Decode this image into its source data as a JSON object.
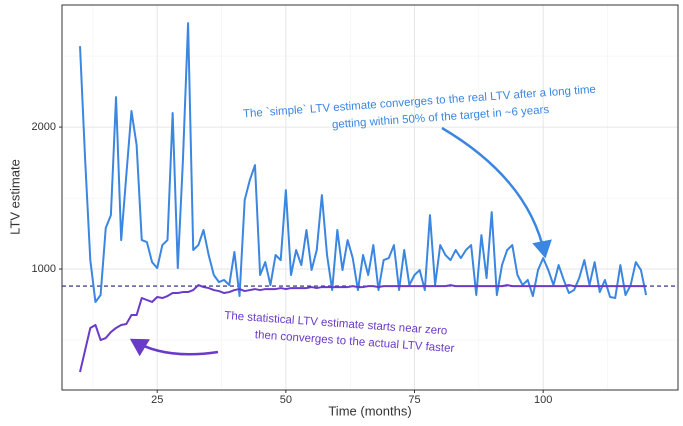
{
  "chart_data": {
    "type": "line",
    "x_label": "Time (months)",
    "y_label": "LTV estimate",
    "x": [
      10,
      11,
      12,
      13,
      14,
      15,
      16,
      17,
      18,
      19,
      20,
      21,
      22,
      23,
      24,
      25,
      26,
      27,
      28,
      29,
      30,
      31,
      32,
      33,
      34,
      35,
      36,
      37,
      38,
      39,
      40,
      41,
      42,
      43,
      44,
      45,
      46,
      47,
      48,
      49,
      50,
      51,
      52,
      53,
      54,
      55,
      56,
      57,
      58,
      59,
      60,
      61,
      62,
      63,
      64,
      65,
      66,
      67,
      68,
      69,
      70,
      71,
      72,
      73,
      74,
      75,
      76,
      77,
      78,
      79,
      80,
      81,
      82,
      83,
      84,
      85,
      86,
      87,
      88,
      89,
      90,
      91,
      92,
      93,
      94,
      95,
      96,
      97,
      98,
      99,
      100,
      101,
      102,
      103,
      104,
      105,
      106,
      107,
      108,
      109,
      110,
      111,
      112,
      113,
      114,
      115,
      116,
      117,
      118,
      119,
      120
    ],
    "series": [
      {
        "name": "simple",
        "color": "#3b86e0",
        "values": [
          2570,
          1768,
          1063,
          768,
          817,
          1289,
          1380,
          2211,
          1204,
          1662,
          2113,
          1873,
          1204,
          1190,
          1049,
          1007,
          1169,
          1204,
          2099,
          1007,
          1768,
          2732,
          1134,
          1169,
          1275,
          1099,
          958,
          908,
          923,
          887,
          1120,
          810,
          1486,
          1627,
          1732,
          958,
          1049,
          887,
          1099,
          1063,
          1556,
          958,
          1134,
          1028,
          1275,
          993,
          1134,
          1521,
          1099,
          852,
          1275,
          993,
          1204,
          1077,
          852,
          1099,
          958,
          1169,
          852,
          1063,
          1077,
          1169,
          852,
          1134,
          887,
          958,
          993,
          852,
          1380,
          887,
          1169,
          1099,
          1063,
          1134,
          1077,
          1134,
          1169,
          817,
          1239,
          937,
          1401,
          817,
          1028,
          1134,
          1169,
          958,
          887,
          923,
          810,
          993,
          1077,
          993,
          887,
          1028,
          923,
          831,
          852,
          937,
          1063,
          887,
          1049,
          838,
          923,
          803,
          796,
          1028,
          817,
          887,
          1049,
          993,
          817
        ]
      },
      {
        "name": "statistical",
        "color": "#6a3bc9",
        "values": [
          275,
          430,
          585,
          606,
          500,
          514,
          556,
          585,
          606,
          613,
          676,
          676,
          796,
          782,
          768,
          803,
          796,
          810,
          831,
          831,
          838,
          838,
          852,
          887,
          873,
          866,
          852,
          845,
          831,
          838,
          852,
          859,
          845,
          852,
          859,
          852,
          859,
          859,
          859,
          866,
          859,
          866,
          866,
          866,
          866,
          873,
          866,
          873,
          873,
          873,
          873,
          873,
          873,
          880,
          873,
          873,
          880,
          880,
          873,
          880,
          880,
          880,
          880,
          880,
          880,
          880,
          880,
          880,
          880,
          880,
          880,
          880,
          887,
          880,
          880,
          880,
          880,
          880,
          880,
          880,
          880,
          880,
          880,
          887,
          880,
          880,
          880,
          880,
          880,
          880,
          880,
          880,
          880,
          880,
          880,
          887,
          880,
          880,
          880,
          880,
          880,
          880,
          880,
          880,
          880,
          880,
          880,
          880,
          880,
          880,
          880
        ]
      }
    ],
    "reference_line": 880,
    "reference_color": "#1f1f7a",
    "xlim": [
      6.5,
      126.2
    ],
    "ylim": [
      148,
      2860
    ],
    "xticks": [
      25,
      50,
      75,
      100
    ],
    "yticks": [
      1000,
      2000
    ],
    "grid": true,
    "annotations": [
      {
        "lines": [
          "The `simple` LTV estimate converges to the real LTV after a long time",
          "getting within 50% of the target in ~6 years"
        ],
        "color": "#3b86e0"
      },
      {
        "lines": [
          "The statistical LTV estimate starts near zero",
          "then converges to the actual LTV faster"
        ],
        "color": "#6a3bc9"
      }
    ]
  }
}
